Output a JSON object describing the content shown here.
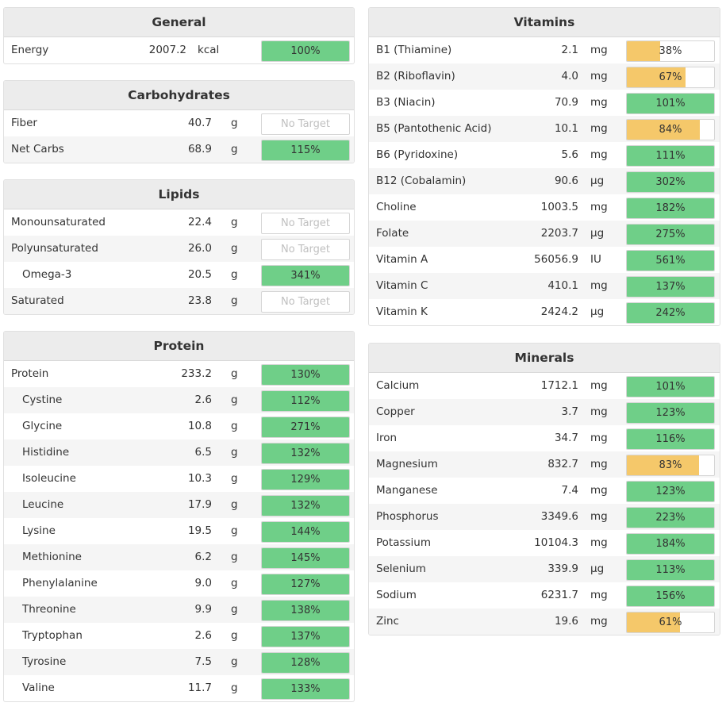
{
  "colors": {
    "over": "#6fcf88",
    "under": "#f5c86a",
    "no_target_text": "#c0c0c0"
  },
  "left": [
    {
      "title": "General",
      "cls": "panel-general",
      "rows": [
        {
          "name": "Energy",
          "amount": "2007.2",
          "unit": "kcal",
          "pct": 100,
          "label": "100%"
        }
      ]
    },
    {
      "title": "Carbohydrates",
      "rows": [
        {
          "name": "Fiber",
          "amount": "40.7",
          "unit": "g",
          "pct": null,
          "label": "No Target"
        },
        {
          "name": "Net Carbs",
          "amount": "68.9",
          "unit": "g",
          "pct": 115,
          "label": "115%"
        }
      ]
    },
    {
      "title": "Lipids",
      "rows": [
        {
          "name": "Monounsaturated",
          "amount": "22.4",
          "unit": "g",
          "pct": null,
          "label": "No Target"
        },
        {
          "name": "Polyunsaturated",
          "amount": "26.0",
          "unit": "g",
          "pct": null,
          "label": "No Target"
        },
        {
          "name": "Omega-3",
          "indent": true,
          "amount": "20.5",
          "unit": "g",
          "pct": 341,
          "label": "341%"
        },
        {
          "name": "Saturated",
          "amount": "23.8",
          "unit": "g",
          "pct": null,
          "label": "No Target"
        }
      ]
    },
    {
      "title": "Protein",
      "rows": [
        {
          "name": "Protein",
          "amount": "233.2",
          "unit": "g",
          "pct": 130,
          "label": "130%"
        },
        {
          "name": "Cystine",
          "indent": true,
          "amount": "2.6",
          "unit": "g",
          "pct": 112,
          "label": "112%"
        },
        {
          "name": "Glycine",
          "indent": true,
          "amount": "10.8",
          "unit": "g",
          "pct": 271,
          "label": "271%"
        },
        {
          "name": "Histidine",
          "indent": true,
          "amount": "6.5",
          "unit": "g",
          "pct": 132,
          "label": "132%"
        },
        {
          "name": "Isoleucine",
          "indent": true,
          "amount": "10.3",
          "unit": "g",
          "pct": 129,
          "label": "129%"
        },
        {
          "name": "Leucine",
          "indent": true,
          "amount": "17.9",
          "unit": "g",
          "pct": 132,
          "label": "132%"
        },
        {
          "name": "Lysine",
          "indent": true,
          "amount": "19.5",
          "unit": "g",
          "pct": 144,
          "label": "144%"
        },
        {
          "name": "Methionine",
          "indent": true,
          "amount": "6.2",
          "unit": "g",
          "pct": 145,
          "label": "145%"
        },
        {
          "name": "Phenylalanine",
          "indent": true,
          "amount": "9.0",
          "unit": "g",
          "pct": 127,
          "label": "127%"
        },
        {
          "name": "Threonine",
          "indent": true,
          "amount": "9.9",
          "unit": "g",
          "pct": 138,
          "label": "138%"
        },
        {
          "name": "Tryptophan",
          "indent": true,
          "amount": "2.6",
          "unit": "g",
          "pct": 137,
          "label": "137%"
        },
        {
          "name": "Tyrosine",
          "indent": true,
          "amount": "7.5",
          "unit": "g",
          "pct": 128,
          "label": "128%"
        },
        {
          "name": "Valine",
          "indent": true,
          "amount": "11.7",
          "unit": "g",
          "pct": 133,
          "label": "133%"
        }
      ]
    }
  ],
  "right": [
    {
      "title": "Vitamins",
      "rows": [
        {
          "name": "B1 (Thiamine)",
          "amount": "2.1",
          "unit": "mg",
          "pct": 38,
          "label": "38%"
        },
        {
          "name": "B2 (Riboflavin)",
          "amount": "4.0",
          "unit": "mg",
          "pct": 67,
          "label": "67%"
        },
        {
          "name": "B3 (Niacin)",
          "amount": "70.9",
          "unit": "mg",
          "pct": 101,
          "label": "101%"
        },
        {
          "name": "B5 (Pantothenic Acid)",
          "amount": "10.1",
          "unit": "mg",
          "pct": 84,
          "label": "84%"
        },
        {
          "name": "B6 (Pyridoxine)",
          "amount": "5.6",
          "unit": "mg",
          "pct": 111,
          "label": "111%"
        },
        {
          "name": "B12 (Cobalamin)",
          "amount": "90.6",
          "unit": "µg",
          "pct": 302,
          "label": "302%"
        },
        {
          "name": "Choline",
          "amount": "1003.5",
          "unit": "mg",
          "pct": 182,
          "label": "182%"
        },
        {
          "name": "Folate",
          "amount": "2203.7",
          "unit": "µg",
          "pct": 275,
          "label": "275%"
        },
        {
          "name": "Vitamin A",
          "amount": "56056.9",
          "unit": "IU",
          "pct": 561,
          "label": "561%"
        },
        {
          "name": "Vitamin C",
          "amount": "410.1",
          "unit": "mg",
          "pct": 137,
          "label": "137%"
        },
        {
          "name": "Vitamin K",
          "amount": "2424.2",
          "unit": "µg",
          "pct": 242,
          "label": "242%"
        }
      ]
    },
    {
      "title": "Minerals",
      "rows": [
        {
          "name": "Calcium",
          "amount": "1712.1",
          "unit": "mg",
          "pct": 101,
          "label": "101%"
        },
        {
          "name": "Copper",
          "amount": "3.7",
          "unit": "mg",
          "pct": 123,
          "label": "123%"
        },
        {
          "name": "Iron",
          "amount": "34.7",
          "unit": "mg",
          "pct": 116,
          "label": "116%"
        },
        {
          "name": "Magnesium",
          "amount": "832.7",
          "unit": "mg",
          "pct": 83,
          "label": "83%"
        },
        {
          "name": "Manganese",
          "amount": "7.4",
          "unit": "mg",
          "pct": 123,
          "label": "123%"
        },
        {
          "name": "Phosphorus",
          "amount": "3349.6",
          "unit": "mg",
          "pct": 223,
          "label": "223%"
        },
        {
          "name": "Potassium",
          "amount": "10104.3",
          "unit": "mg",
          "pct": 184,
          "label": "184%"
        },
        {
          "name": "Selenium",
          "amount": "339.9",
          "unit": "µg",
          "pct": 113,
          "label": "113%"
        },
        {
          "name": "Sodium",
          "amount": "6231.7",
          "unit": "mg",
          "pct": 156,
          "label": "156%"
        },
        {
          "name": "Zinc",
          "amount": "19.6",
          "unit": "mg",
          "pct": 61,
          "label": "61%"
        }
      ]
    }
  ]
}
